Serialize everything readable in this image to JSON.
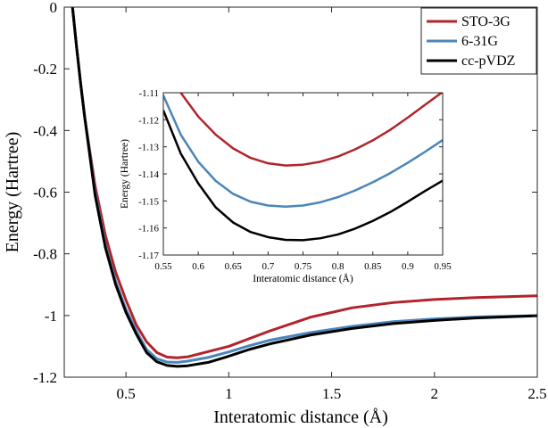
{
  "chart_data": [
    {
      "id": "main",
      "type": "line",
      "title": "",
      "xlabel": "Interatomic distance (Å)",
      "ylabel": "Energy (Hartree)",
      "xlim": [
        0.2,
        2.5
      ],
      "ylim": [
        -1.2,
        0
      ],
      "xticks": [
        0.5,
        1,
        1.5,
        2,
        2.5
      ],
      "xtick_labels": [
        "0.5",
        "1",
        "1.5",
        "2",
        "2.5"
      ],
      "yticks": [
        0,
        -0.2,
        -0.4,
        -0.6,
        -0.8,
        -1,
        -1.2
      ],
      "ytick_labels": [
        "0",
        "-0.2",
        "-0.4",
        "-0.6",
        "-0.8",
        "-1",
        "-1.2"
      ],
      "grid": false,
      "legend_position": "top-right",
      "series": [
        {
          "name": "STO-3G",
          "color": "#b2242b",
          "x": [
            0.24,
            0.26,
            0.28,
            0.3,
            0.35,
            0.4,
            0.45,
            0.5,
            0.55,
            0.6,
            0.65,
            0.7,
            0.75,
            0.8,
            0.9,
            1.0,
            1.1,
            1.2,
            1.4,
            1.6,
            1.8,
            2.0,
            2.2,
            2.5
          ],
          "y": [
            0.0,
            -0.13,
            -0.25,
            -0.36,
            -0.58,
            -0.74,
            -0.86,
            -0.95,
            -1.03,
            -1.085,
            -1.12,
            -1.135,
            -1.137,
            -1.134,
            -1.117,
            -1.1,
            -1.075,
            -1.05,
            -1.005,
            -0.975,
            -0.958,
            -0.948,
            -0.942,
            -0.936
          ]
        },
        {
          "name": "6-31G",
          "color": "#4a86b9",
          "x": [
            0.24,
            0.26,
            0.28,
            0.3,
            0.35,
            0.4,
            0.45,
            0.5,
            0.55,
            0.6,
            0.65,
            0.7,
            0.75,
            0.8,
            0.9,
            1.0,
            1.1,
            1.2,
            1.4,
            1.6,
            1.8,
            2.0,
            2.2,
            2.5
          ],
          "y": [
            0.0,
            -0.13,
            -0.25,
            -0.36,
            -0.6,
            -0.77,
            -0.89,
            -0.98,
            -1.05,
            -1.11,
            -1.14,
            -1.151,
            -1.152,
            -1.148,
            -1.136,
            -1.118,
            -1.098,
            -1.08,
            -1.055,
            -1.035,
            -1.02,
            -1.011,
            -1.005,
            -1.0
          ]
        },
        {
          "name": "cc-pVDZ",
          "color": "#000000",
          "x": [
            0.24,
            0.26,
            0.28,
            0.3,
            0.35,
            0.4,
            0.45,
            0.5,
            0.55,
            0.6,
            0.65,
            0.7,
            0.75,
            0.8,
            0.9,
            1.0,
            1.1,
            1.2,
            1.4,
            1.6,
            1.8,
            2.0,
            2.2,
            2.5
          ],
          "y": [
            0.0,
            -0.13,
            -0.25,
            -0.36,
            -0.61,
            -0.78,
            -0.9,
            -0.99,
            -1.06,
            -1.12,
            -1.15,
            -1.162,
            -1.165,
            -1.163,
            -1.152,
            -1.132,
            -1.11,
            -1.092,
            -1.063,
            -1.042,
            -1.026,
            -1.016,
            -1.008,
            -1.001
          ]
        }
      ]
    },
    {
      "id": "inset",
      "type": "line",
      "title": "",
      "xlabel": "Interatomic distance (Å)",
      "ylabel": "Energy (Hartree)",
      "xlim": [
        0.55,
        0.95
      ],
      "ylim": [
        -1.17,
        -1.11
      ],
      "xticks": [
        0.55,
        0.6,
        0.65,
        0.7,
        0.75,
        0.8,
        0.85,
        0.9,
        0.95
      ],
      "xtick_labels": [
        "0.55",
        "0.6",
        "0.65",
        "0.7",
        "0.75",
        "0.8",
        "0.85",
        "0.9",
        "0.95"
      ],
      "yticks": [
        -1.11,
        -1.12,
        -1.13,
        -1.14,
        -1.15,
        -1.16,
        -1.17
      ],
      "ytick_labels": [
        "-1.11",
        "-1.12",
        "-1.13",
        "-1.14",
        "-1.15",
        "-1.16",
        "-1.17"
      ],
      "grid": false,
      "series": [
        {
          "name": "STO-3G",
          "color": "#b2242b",
          "x": [
            0.575,
            0.6,
            0.625,
            0.65,
            0.675,
            0.7,
            0.725,
            0.75,
            0.775,
            0.8,
            0.825,
            0.85,
            0.875,
            0.9,
            0.925,
            0.95
          ],
          "y": [
            -1.11,
            -1.1188,
            -1.1255,
            -1.1306,
            -1.1341,
            -1.1361,
            -1.1369,
            -1.1366,
            -1.1355,
            -1.1336,
            -1.1309,
            -1.1276,
            -1.1237,
            -1.1192,
            -1.1144,
            -1.1097
          ]
        },
        {
          "name": "6-31G",
          "color": "#4a86b9",
          "x": [
            0.55,
            0.575,
            0.6,
            0.625,
            0.65,
            0.675,
            0.7,
            0.725,
            0.75,
            0.775,
            0.8,
            0.825,
            0.85,
            0.875,
            0.9,
            0.925,
            0.95
          ],
          "y": [
            -1.111,
            -1.1255,
            -1.1355,
            -1.1426,
            -1.1474,
            -1.1503,
            -1.1517,
            -1.1521,
            -1.1517,
            -1.1505,
            -1.1486,
            -1.1461,
            -1.1431,
            -1.1397,
            -1.1359,
            -1.1318,
            -1.1275
          ]
        },
        {
          "name": "cc-pVDZ",
          "color": "#000000",
          "x": [
            0.55,
            0.575,
            0.6,
            0.625,
            0.65,
            0.675,
            0.7,
            0.725,
            0.75,
            0.775,
            0.8,
            0.825,
            0.85,
            0.875,
            0.9,
            0.925,
            0.95
          ],
          "y": [
            -1.1165,
            -1.1325,
            -1.1435,
            -1.1524,
            -1.158,
            -1.1615,
            -1.1634,
            -1.1644,
            -1.1645,
            -1.1638,
            -1.1624,
            -1.1602,
            -1.1574,
            -1.1541,
            -1.1503,
            -1.1463,
            -1.1425
          ]
        }
      ]
    }
  ]
}
